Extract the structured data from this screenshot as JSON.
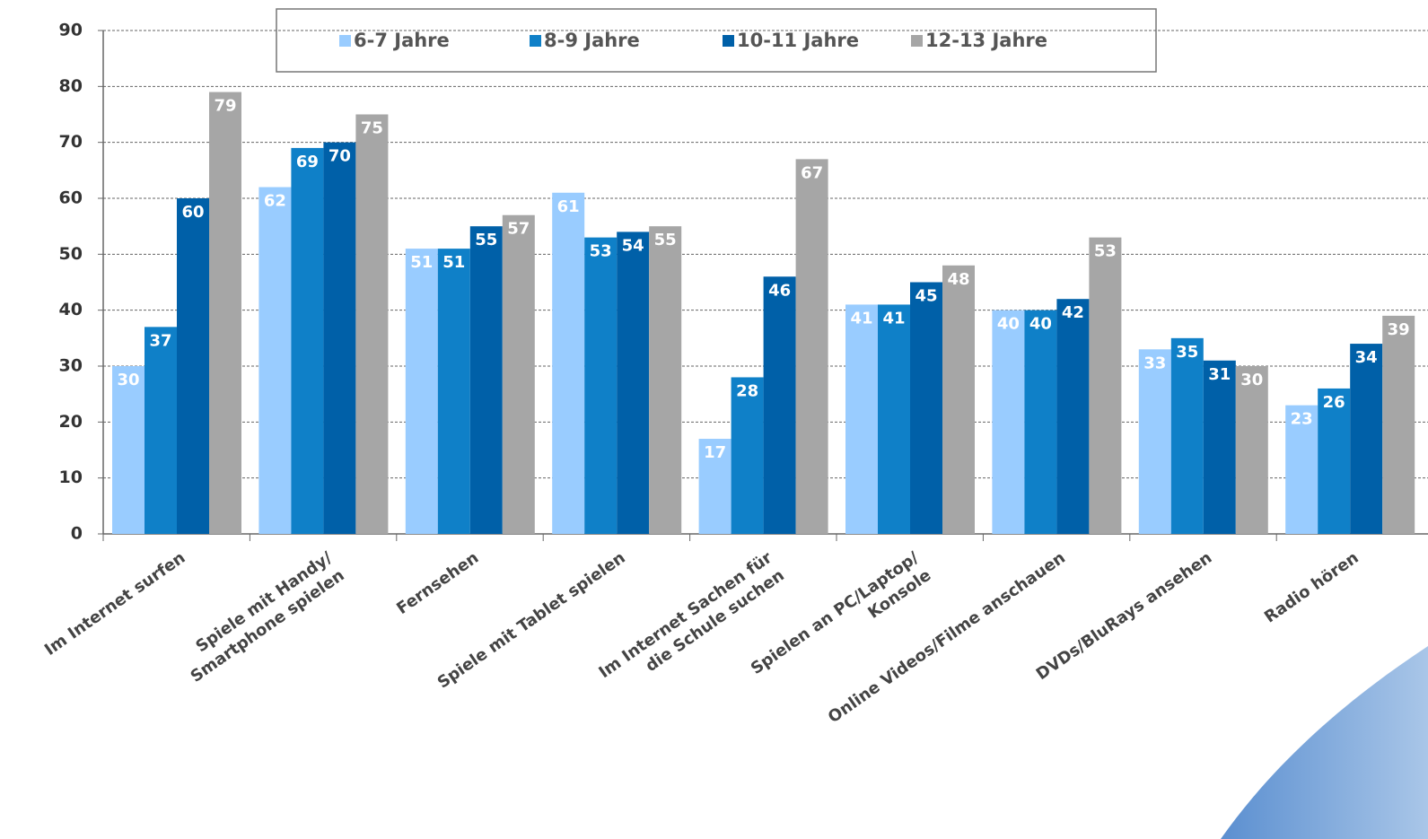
{
  "chart_data": {
    "type": "bar",
    "categories": [
      "Im Internet surfen",
      "Spiele mit Handy/\nSmartphone spielen",
      "Fernsehen",
      "Spiele mit Tablet spielen",
      "Im Internet Sachen für\ndie Schule suchen",
      "Spielen an PC/Laptop/\nKonsole",
      "Online Videos/Filme anschauen",
      "DVDs/BluRays ansehen",
      "Radio hören"
    ],
    "series": [
      {
        "name": "6-7 Jahre",
        "color": "#99ccff",
        "values": [
          30,
          62,
          51,
          61,
          17,
          41,
          40,
          33,
          23
        ]
      },
      {
        "name": "8-9 Jahre",
        "color": "#0f80c8",
        "values": [
          37,
          69,
          51,
          53,
          28,
          41,
          40,
          35,
          26
        ]
      },
      {
        "name": "10-11 Jahre",
        "color": "#0060a8",
        "values": [
          60,
          70,
          55,
          54,
          46,
          45,
          42,
          31,
          34
        ]
      },
      {
        "name": "12-13 Jahre",
        "color": "#a6a6a6",
        "values": [
          79,
          75,
          57,
          55,
          67,
          48,
          53,
          30,
          39
        ]
      }
    ],
    "ylim": [
      0,
      90
    ],
    "yticks": [
      0,
      10,
      20,
      30,
      40,
      50,
      60,
      70,
      80,
      90
    ],
    "grid": true
  }
}
